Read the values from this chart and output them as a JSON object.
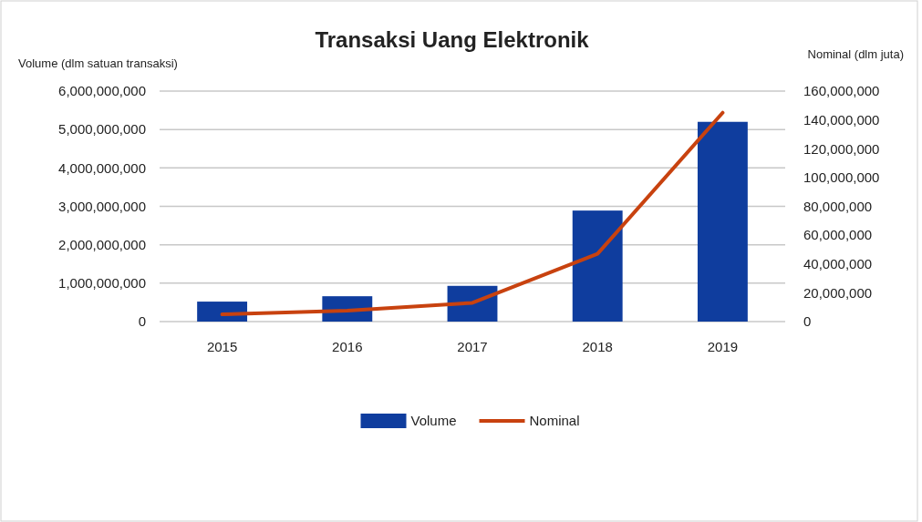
{
  "chart_data": {
    "type": "bar",
    "title": "Transaksi Uang Elektronik",
    "ylabel": "Volume (dlm satuan transaksi)",
    "y2label": "Nominal (dlm juta)",
    "categories": [
      "2015",
      "2016",
      "2017",
      "2018",
      "2019"
    ],
    "series": [
      {
        "name": "Volume",
        "color": "#0f3d9e",
        "values": [
          520000000,
          660000000,
          930000000,
          2890000000,
          5200000000
        ]
      },
      {
        "name": "Nominal",
        "type": "line",
        "axis": "y2",
        "color": "#c8420f",
        "values": [
          5000000,
          7600000,
          13000000,
          47000000,
          145000000
        ]
      }
    ],
    "ylim": [
      0,
      6000000000
    ],
    "yticks": [
      {
        "value": 0,
        "label": "0"
      },
      {
        "value": 1000000000,
        "label": "1,000,000,000"
      },
      {
        "value": 2000000000,
        "label": "2,000,000,000"
      },
      {
        "value": 3000000000,
        "label": "3,000,000,000"
      },
      {
        "value": 4000000000,
        "label": "4,000,000,000"
      },
      {
        "value": 5000000000,
        "label": "5,000,000,000"
      },
      {
        "value": 6000000000,
        "label": "6,000,000,000"
      }
    ],
    "y2lim": [
      0,
      160000000
    ],
    "y2ticks": [
      {
        "value": 0,
        "label": "0"
      },
      {
        "value": 20000000,
        "label": "20,000,000"
      },
      {
        "value": 40000000,
        "label": "40,000,000"
      },
      {
        "value": 60000000,
        "label": "60,000,000"
      },
      {
        "value": 80000000,
        "label": "80,000,000"
      },
      {
        "value": 100000000,
        "label": "100,000,000"
      },
      {
        "value": 120000000,
        "label": "120,000,000"
      },
      {
        "value": 140000000,
        "label": "140,000,000"
      },
      {
        "value": 160000000,
        "label": "160,000,000"
      }
    ],
    "grid": "y",
    "legend": "bottom",
    "marker": "none",
    "line_style": "solid"
  }
}
